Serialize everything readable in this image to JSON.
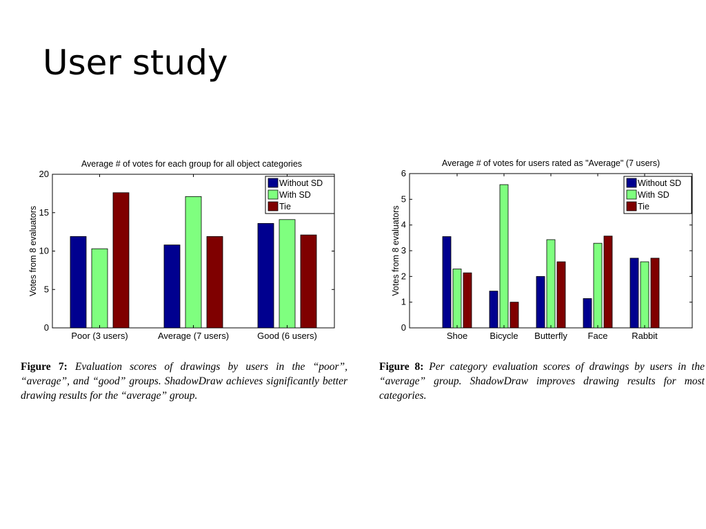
{
  "slide": {
    "title": "User study"
  },
  "chart_data": [
    {
      "type": "bar",
      "title": "Average # of votes for each group for all object categories",
      "xlabel": "",
      "ylabel": "Votes from 8 evaluators",
      "ylim": [
        0,
        20
      ],
      "yticks": [
        0,
        5,
        10,
        15,
        20
      ],
      "categories": [
        "Poor (3 users)",
        "Average (7 users)",
        "Good (6 users)"
      ],
      "series": [
        {
          "name": "Without SD",
          "color": "#00008f",
          "values": [
            11.9,
            10.8,
            13.6
          ]
        },
        {
          "name": "With SD",
          "color": "#7fff7f",
          "values": [
            10.3,
            17.1,
            14.1
          ]
        },
        {
          "name": "Tie",
          "color": "#7f0000",
          "values": [
            17.6,
            11.9,
            12.1
          ]
        }
      ],
      "legend": "top-right",
      "grid": false
    },
    {
      "type": "bar",
      "title": "Average # of votes for users rated as \"Average\" (7 users)",
      "xlabel": "",
      "ylabel": "Votes from 8 evaluators",
      "ylim": [
        0,
        6
      ],
      "yticks": [
        0,
        1,
        2,
        3,
        4,
        5,
        6
      ],
      "categories": [
        "Shoe",
        "Bicycle",
        "Butterfly",
        "Face",
        "Rabbit"
      ],
      "series": [
        {
          "name": "Without SD",
          "color": "#00008f",
          "values": [
            3.55,
            1.43,
            2.0,
            1.14,
            2.71
          ]
        },
        {
          "name": "With SD",
          "color": "#7fff7f",
          "values": [
            2.29,
            5.57,
            3.43,
            3.29,
            2.57
          ]
        },
        {
          "name": "Tie",
          "color": "#7f0000",
          "values": [
            2.14,
            1.0,
            2.57,
            3.57,
            2.71
          ]
        }
      ],
      "legend": "top-right",
      "grid": false
    }
  ],
  "captions": [
    {
      "label": "Figure 7:",
      "text": "Evaluation scores of drawings by users in the “poor”, “average”, and “good” groups. ShadowDraw achieves significantly better drawing results for the “average” group."
    },
    {
      "label": "Figure 8:",
      "text": "Per category evaluation scores of drawings by users in the “average” group. ShadowDraw improves drawing results for most categories."
    }
  ]
}
